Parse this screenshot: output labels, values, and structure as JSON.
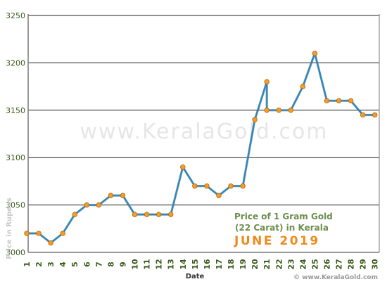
{
  "chart_data": {
    "type": "line",
    "x": [
      "1",
      "2",
      "3",
      "4",
      "5",
      "6",
      "7",
      "8",
      "9",
      "10",
      "11",
      "12",
      "13",
      "14",
      "15",
      "16",
      "17",
      "18",
      "19",
      "20",
      "21",
      "21",
      "22",
      "23",
      "24",
      "25",
      "26",
      "27",
      "28",
      "29",
      "30"
    ],
    "series": [
      {
        "values": [
          3020,
          3020,
          3010,
          3020,
          3040,
          3050,
          3050,
          3060,
          3060,
          3040,
          3040,
          3040,
          3040,
          3090,
          3070,
          3070,
          3060,
          3070,
          3070,
          3140,
          3180,
          3150,
          3150,
          3150,
          3175,
          3210,
          3160,
          3160,
          3160,
          3145,
          3145
        ]
      }
    ],
    "title": "Price of 1 Gram Gold",
    "subtitle": "(22 Carat) in Kerala",
    "period": "JUNE 2019",
    "xlabel": "Date",
    "ylabel": "Price in Rupees",
    "xlim": [
      1,
      30
    ],
    "ylim": [
      3000,
      3250
    ],
    "yticks": [
      3000,
      3050,
      3100,
      3150,
      3200,
      3250
    ],
    "xticks": [
      "1",
      "2",
      "3",
      "4",
      "5",
      "6",
      "7",
      "8",
      "9",
      "10",
      "11",
      "12",
      "13",
      "14",
      "15",
      "16",
      "17",
      "18",
      "19",
      "20",
      "21",
      "22",
      "23",
      "24",
      "25",
      "26",
      "27",
      "28",
      "29",
      "30"
    ],
    "grid": true,
    "watermark": "www.KeralaGold.com",
    "footer_credit": "© www.KeralaGold.com",
    "colors": {
      "line": "#2e86b8",
      "marker_fill": "#f59a2c",
      "marker_stroke": "#b86400",
      "axis_text": "#3a5a1a",
      "title_text": "#6b8e4e",
      "period_text": "#f08a1c",
      "frame": "#7a7a7a",
      "grid": "#222222"
    }
  }
}
